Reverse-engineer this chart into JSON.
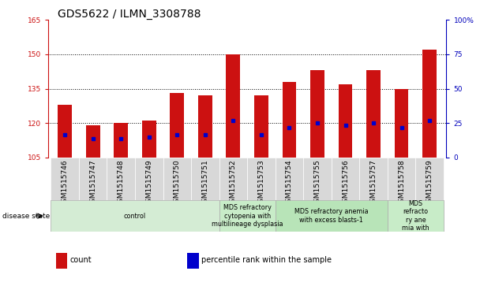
{
  "title": "GDS5622 / ILMN_3308788",
  "samples": [
    "GSM1515746",
    "GSM1515747",
    "GSM1515748",
    "GSM1515749",
    "GSM1515750",
    "GSM1515751",
    "GSM1515752",
    "GSM1515753",
    "GSM1515754",
    "GSM1515755",
    "GSM1515756",
    "GSM1515757",
    "GSM1515758",
    "GSM1515759"
  ],
  "bar_bottom": 105,
  "bar_tops": [
    128,
    119,
    120,
    121,
    133,
    132,
    150,
    132,
    138,
    143,
    137,
    143,
    135,
    152
  ],
  "blue_dot_y": [
    115,
    113,
    113,
    114,
    115,
    115,
    121,
    115,
    118,
    120,
    119,
    120,
    118,
    121
  ],
  "ylim": [
    105,
    165
  ],
  "yticks_left": [
    105,
    120,
    135,
    150,
    165
  ],
  "yticks_right": [
    0,
    25,
    50,
    75,
    100
  ],
  "bar_color": "#cc1111",
  "dot_color": "#0000cc",
  "axis_color_left": "#cc1111",
  "axis_color_right": "#0000bb",
  "disease_groups": [
    {
      "label": "control",
      "start": 0,
      "end": 6,
      "color": "#d4ecd4"
    },
    {
      "label": "MDS refractory\ncytopenia with\nmultilineage dysplasia",
      "start": 6,
      "end": 8,
      "color": "#c8ecc8"
    },
    {
      "label": "MDS refractory anemia\nwith excess blasts-1",
      "start": 8,
      "end": 12,
      "color": "#b8e4b8"
    },
    {
      "label": "MDS\nrefracto\nry ane\nmia with",
      "start": 12,
      "end": 14,
      "color": "#c8ecc8"
    }
  ],
  "disease_state_label": "disease state",
  "legend_items": [
    {
      "color": "#cc1111",
      "label": "count"
    },
    {
      "color": "#0000cc",
      "label": "percentile rank within the sample"
    }
  ],
  "bar_width": 0.5,
  "tick_label_fontsize": 6.5,
  "title_fontsize": 10,
  "group_label_fontsize": 5.8,
  "sample_box_color": "#d8d8d8"
}
